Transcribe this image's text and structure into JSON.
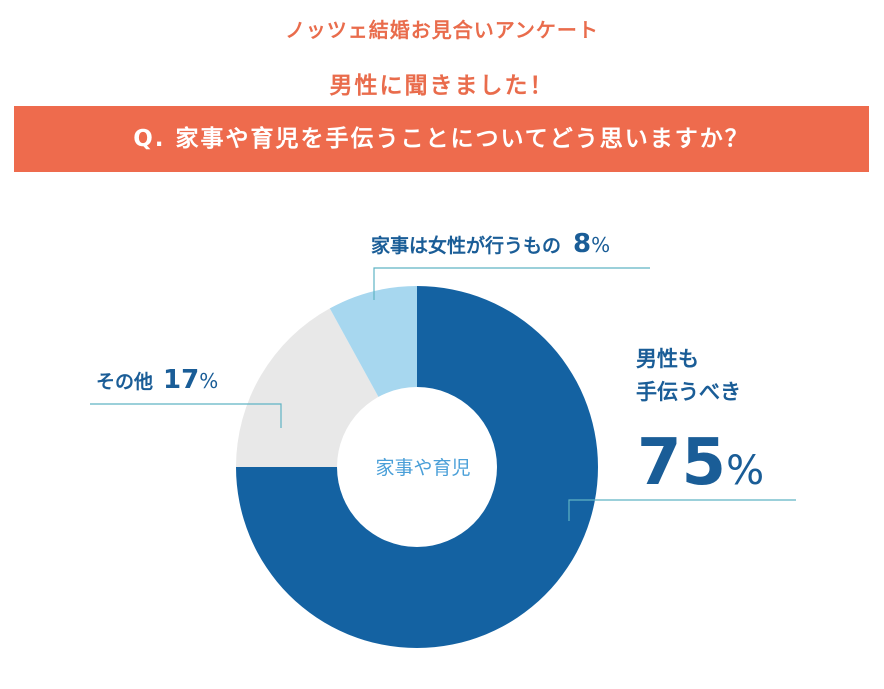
{
  "header": {
    "survey_title": "ノッツェ結婚お見合いアンケート",
    "subtitle": "男性に聞きました！",
    "question": "Q. 家事や育児を手伝うことについてどう思いますか？"
  },
  "colors": {
    "accent": "#ee6b4d",
    "primary": "#1462a2",
    "light_blue": "#a7d7ef",
    "gray": "#e8e8e8",
    "label_text": "#1a5d97",
    "leader_line": "#5fb3c4"
  },
  "chart_data": {
    "type": "pie",
    "center_label": "家事や育児",
    "slices": [
      {
        "label_lines": [
          "男性も",
          "手伝うべき"
        ],
        "value": 75,
        "value_text": "75",
        "unit": "%",
        "color": "#1462a2"
      },
      {
        "label_lines": [
          "その他"
        ],
        "value": 17,
        "value_text": "17",
        "unit": "%",
        "color": "#e8e8e8"
      },
      {
        "label_lines": [
          "家事は女性が行うもの"
        ],
        "value": 8,
        "value_text": "8",
        "unit": "%",
        "color": "#a7d7ef"
      }
    ]
  }
}
